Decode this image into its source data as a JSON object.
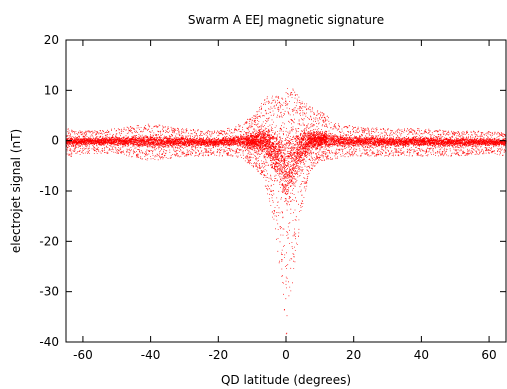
{
  "chart_data": {
    "type": "scatter",
    "title": "Swarm A EEJ magnetic signature",
    "xlabel": "QD latitude (degrees)",
    "ylabel": "electrojet signal (nT)",
    "xlim": [
      -65,
      65
    ],
    "ylim": [
      -40,
      20
    ],
    "xticks": [
      -60,
      -40,
      -20,
      0,
      20,
      40,
      60
    ],
    "yticks": [
      -40,
      -30,
      -20,
      -10,
      0,
      10,
      20
    ],
    "grid": false,
    "legend": "none",
    "series": [
      {
        "color": "#ff0000",
        "envelope": {
          "x": [
            -65,
            -60,
            -50,
            -40,
            -30,
            -20,
            -15,
            -10,
            -7,
            -5,
            -3,
            -1,
            0,
            1,
            3,
            5,
            7,
            10,
            15,
            20,
            30,
            40,
            50,
            60,
            65
          ],
          "upper": [
            2.5,
            2.0,
            2.5,
            3.5,
            2.5,
            2.0,
            3.0,
            5.0,
            8.0,
            9.5,
            9.0,
            8.5,
            10.5,
            11.0,
            10.0,
            8.0,
            7.0,
            6.0,
            3.5,
            3.0,
            2.5,
            2.5,
            2.0,
            2.0,
            1.5
          ],
          "lower": [
            -3.5,
            -2.5,
            -2.5,
            -4.0,
            -3.0,
            -3.0,
            -3.0,
            -5.0,
            -7.0,
            -12.0,
            -20.0,
            -30.0,
            -40.0,
            -33.0,
            -22.0,
            -12.0,
            -6.0,
            -4.0,
            -3.5,
            -3.0,
            -3.0,
            -3.0,
            -3.0,
            -2.5,
            -3.0
          ]
        }
      }
    ]
  }
}
